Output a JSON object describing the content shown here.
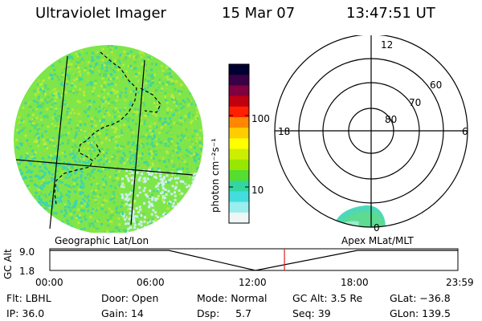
{
  "header": {
    "instrument": "Ultraviolet Imager",
    "date": "15 Mar 07",
    "time": "13:47:51 UT"
  },
  "colorbar": {
    "unit_label": "photon cm⁻²s⁻¹",
    "ticks": [
      "100",
      "10"
    ],
    "colors": [
      "#000030",
      "#3a0045",
      "#800040",
      "#c00010",
      "#ff2000",
      "#ff8800",
      "#ffcc00",
      "#ffff00",
      "#ccee00",
      "#99e600",
      "#55dd30",
      "#33d6a0",
      "#44dddd",
      "#99eeee",
      "#eef6f6"
    ]
  },
  "geo_map": {
    "label": "Geographic Lat/Lon",
    "fill_colors": [
      "#7ee64a",
      "#9ae03a",
      "#5fd86a",
      "#3fd4a6",
      "#b6ec3c"
    ],
    "haze_color": "#cdeff0"
  },
  "polar_plot": {
    "label": "Apex MLat/MLT",
    "mlt_labels": {
      "top": "12",
      "left": "18",
      "right": "6",
      "bottom": "0"
    },
    "lat_labels": [
      "80",
      "70",
      "60"
    ],
    "oval_colors": [
      "#4fd8b8",
      "#66dd77",
      "#aaeedd"
    ]
  },
  "altitude_plot": {
    "ylabel": "GC Alt",
    "yticks": [
      "9.0",
      "1.8"
    ],
    "xticks": [
      "00:00",
      "06:00",
      "12:00",
      "18:00",
      "23:59"
    ],
    "marker_color": "#e0201a",
    "marker_hour": 13.8
  },
  "footer": {
    "flt": "Flt: LBHL",
    "ip": "IP: 36.0",
    "door": "Door: Open",
    "gain": "Gain: 14",
    "mode": "Mode: Normal",
    "dsp": "Dsp:     5.7",
    "gc_alt": "GC Alt: 3.5 Re",
    "seq": "Seq: 39",
    "glat": "GLat: −36.8",
    "glon": "GLon: 139.5"
  }
}
